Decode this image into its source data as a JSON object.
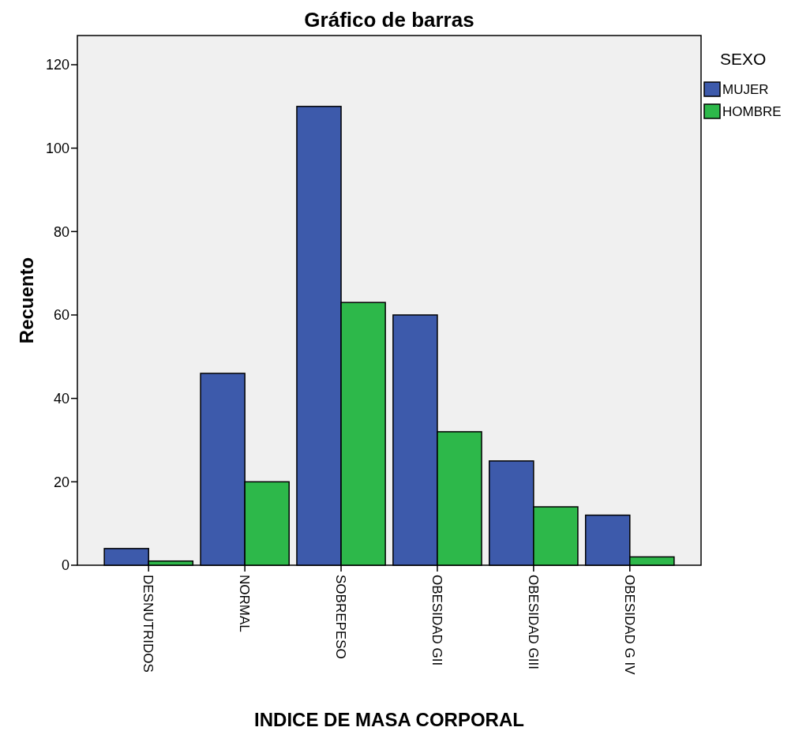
{
  "chart_data": {
    "type": "bar",
    "title": "Gráfico de barras",
    "xlabel": "INDICE DE MASA CORPORAL",
    "ylabel": "Recuento",
    "legend_title": "SEXO",
    "legend": "top right",
    "categories": [
      "DESNUTRIDOS",
      "NORMAL",
      "SOBREPESO",
      "OBESIDAD GII",
      "OBESIDAD GIII",
      "OBESIDAD G IV"
    ],
    "series": [
      {
        "name": "MUJER",
        "color": "#3d5aab",
        "values": [
          4,
          46,
          110,
          60,
          25,
          12
        ]
      },
      {
        "name": "HOMBRE",
        "color": "#2db84a",
        "values": [
          1,
          20,
          63,
          32,
          14,
          2
        ]
      }
    ],
    "ylim": [
      0,
      127
    ],
    "yticks": [
      0,
      20,
      40,
      60,
      80,
      100,
      120
    ],
    "grid": false
  }
}
